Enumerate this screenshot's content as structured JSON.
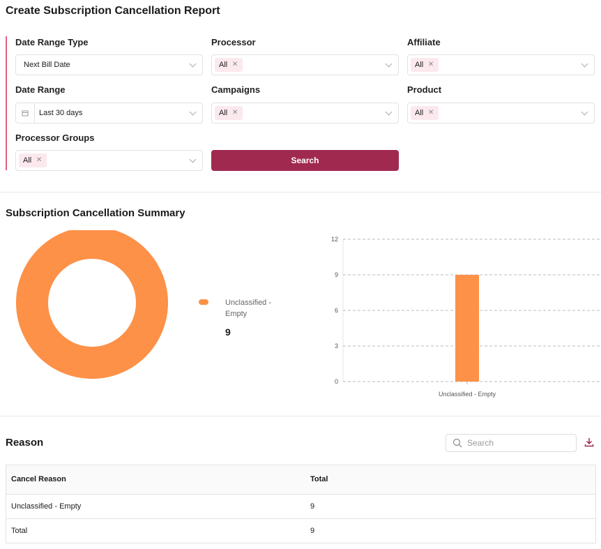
{
  "header": {
    "title": "Create Subscription Cancellation Report"
  },
  "filters": {
    "date_range_type": {
      "label": "Date Range Type",
      "value": "Next Bill Date"
    },
    "processor": {
      "label": "Processor",
      "tag": "All"
    },
    "affiliate": {
      "label": "Affiliate",
      "tag": "All"
    },
    "date_range": {
      "label": "Date Range",
      "value": "Last 30 days"
    },
    "campaigns": {
      "label": "Campaigns",
      "tag": "All"
    },
    "product": {
      "label": "Product",
      "tag": "All"
    },
    "processor_groups": {
      "label": "Processor Groups",
      "tag": "All"
    },
    "search_button": "Search"
  },
  "summary": {
    "title": "Subscription Cancellation Summary"
  },
  "chart_data": [
    {
      "type": "pie",
      "categories": [
        "Unclassified - Empty"
      ],
      "values": [
        9
      ],
      "colors": [
        "#fd9148"
      ],
      "donut": true
    },
    {
      "type": "bar",
      "categories": [
        "Unclassified - Empty"
      ],
      "values": [
        9
      ],
      "color": "#fd9148",
      "ylim": [
        0,
        12
      ],
      "yticks": [
        0,
        3,
        6,
        9,
        12
      ],
      "grid": true
    }
  ],
  "reason": {
    "title": "Reason",
    "search_placeholder": "Search",
    "table": {
      "columns": [
        "Cancel Reason",
        "Total"
      ],
      "rows": [
        [
          "Unclassified - Empty",
          9
        ],
        [
          "Total",
          9
        ]
      ]
    }
  }
}
